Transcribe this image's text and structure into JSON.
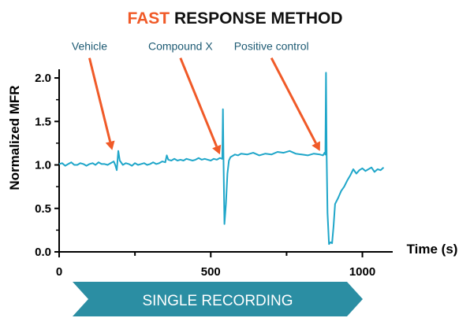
{
  "title": {
    "accent": "FAST",
    "rest": " RESPONSE METHOD",
    "accent_color": "#f05a28",
    "rest_color": "#111111"
  },
  "banner": {
    "label": "SINGLE RECORDING",
    "color": "#2b8ea3",
    "text_color": "#ffffff"
  },
  "chart_data": {
    "type": "line",
    "xlabel": "Time (s)",
    "ylabel": "Normalized MFR",
    "xlim": [
      0,
      1100
    ],
    "ylim": [
      0.0,
      2.1
    ],
    "xticks": [
      0,
      500,
      1000
    ],
    "xticks_minor": [
      250,
      750
    ],
    "yticks": [
      0.0,
      0.5,
      1.0,
      1.5,
      2.0
    ],
    "ytick_labels": [
      "0.0",
      "0.5",
      "1.0",
      "1.5",
      "2.0"
    ],
    "xtick_labels": [
      "0",
      "500",
      "1000"
    ],
    "line_color": "#1fa6c9",
    "annotation_color": "#f05a28",
    "annotation_text_color": "#1d5a73",
    "annotations": [
      {
        "text": "Vehicle",
        "label_x": 100,
        "label_y": 2.32,
        "target_x": 175,
        "target_y": 1.17
      },
      {
        "text": "Compound X",
        "label_x": 400,
        "label_y": 2.32,
        "target_x": 530,
        "target_y": 1.12
      },
      {
        "text": "Positive control",
        "label_x": 700,
        "label_y": 2.32,
        "target_x": 860,
        "target_y": 1.16
      }
    ],
    "series": [
      {
        "x": [
          0,
          10,
          20,
          30,
          40,
          50,
          60,
          70,
          80,
          90,
          100,
          110,
          120,
          130,
          140,
          150,
          160,
          170,
          180,
          185,
          190,
          195,
          200,
          210,
          220,
          230,
          240,
          250,
          260,
          270,
          280,
          290,
          300,
          310,
          320,
          330,
          340,
          350,
          355,
          360,
          370,
          380,
          390,
          400,
          410,
          420,
          430,
          440,
          450,
          460,
          470,
          480,
          490,
          500,
          510,
          520,
          530,
          538,
          540,
          542,
          545,
          550,
          555,
          560,
          565,
          570,
          580,
          590,
          600,
          620,
          640,
          660,
          680,
          700,
          720,
          740,
          760,
          780,
          800,
          820,
          840,
          860,
          870,
          875,
          878,
          880,
          882,
          885,
          890,
          895,
          900,
          905,
          910,
          920,
          930,
          940,
          950,
          960,
          970,
          980,
          990,
          1000,
          1010,
          1020,
          1030,
          1040,
          1050,
          1060,
          1070
        ],
        "y": [
          1.01,
          1.02,
          0.99,
          1.01,
          1.03,
          1.0,
          1.0,
          1.02,
          1.01,
          0.99,
          1.01,
          1.02,
          1.0,
          1.03,
          1.01,
          1.01,
          1.0,
          1.02,
          1.04,
          1.0,
          0.94,
          1.16,
          1.05,
          1.0,
          1.02,
          1.01,
          0.99,
          1.02,
          1.0,
          1.01,
          1.02,
          1.0,
          1.01,
          1.03,
          1.01,
          1.02,
          1.04,
          1.03,
          1.11,
          1.06,
          1.05,
          1.07,
          1.05,
          1.06,
          1.05,
          1.07,
          1.06,
          1.05,
          1.06,
          1.08,
          1.06,
          1.07,
          1.06,
          1.05,
          1.07,
          1.06,
          1.08,
          1.07,
          1.64,
          1.08,
          0.32,
          0.55,
          0.9,
          1.05,
          1.09,
          1.1,
          1.12,
          1.11,
          1.13,
          1.12,
          1.14,
          1.11,
          1.13,
          1.12,
          1.15,
          1.14,
          1.16,
          1.13,
          1.12,
          1.11,
          1.13,
          1.12,
          1.11,
          1.14,
          1.12,
          2.06,
          1.12,
          0.45,
          0.09,
          0.11,
          0.1,
          0.3,
          0.55,
          0.62,
          0.7,
          0.75,
          0.82,
          0.88,
          0.95,
          0.9,
          0.94,
          0.96,
          0.93,
          0.95,
          0.97,
          0.92,
          0.95,
          0.94,
          0.97
        ]
      }
    ]
  }
}
